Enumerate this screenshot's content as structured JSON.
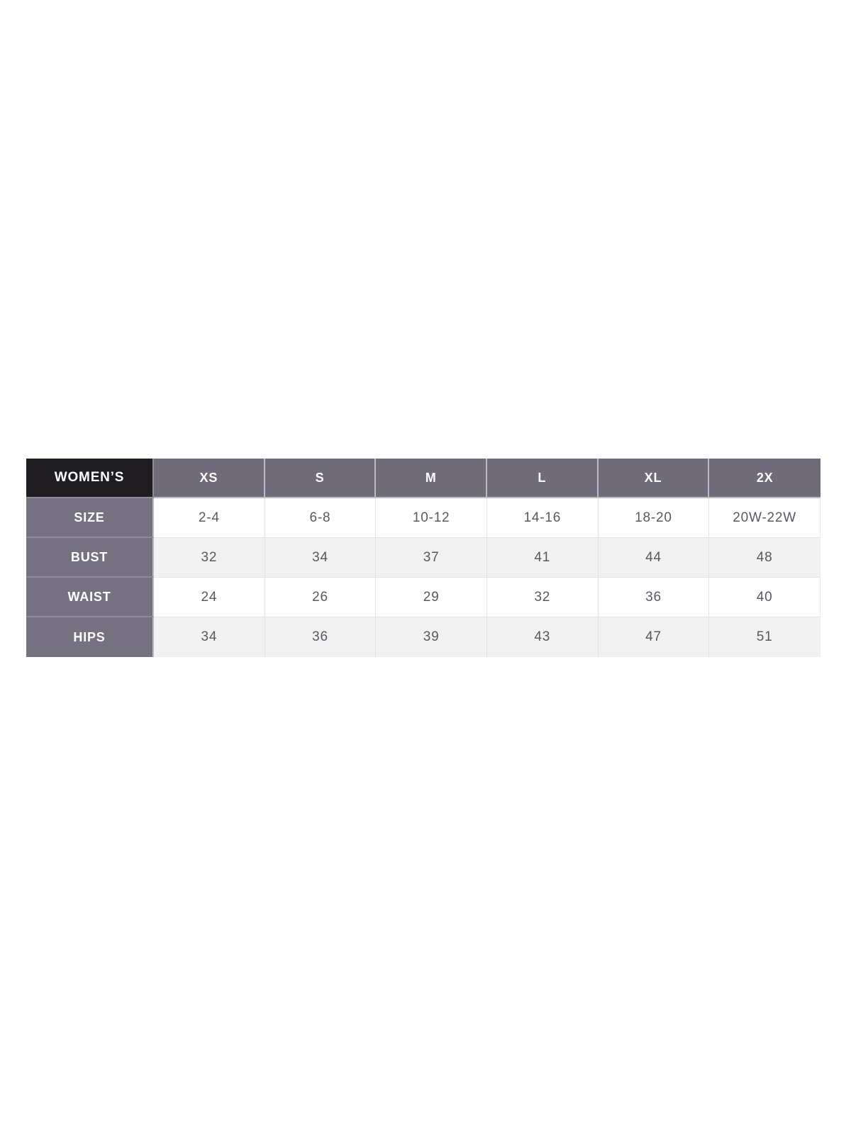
{
  "chart_data": {
    "type": "table",
    "title": "WOMEN’S",
    "corner_label": "WOMEN’S",
    "columns": [
      "XS",
      "S",
      "M",
      "L",
      "XL",
      "2X"
    ],
    "rows": [
      {
        "label": "SIZE",
        "values": [
          "2-4",
          "6-8",
          "10-12",
          "14-16",
          "18-20",
          "20W-22W"
        ]
      },
      {
        "label": "BUST",
        "values": [
          "32",
          "34",
          "37",
          "41",
          "44",
          "48"
        ]
      },
      {
        "label": "WAIST",
        "values": [
          "24",
          "26",
          "29",
          "32",
          "36",
          "40"
        ]
      },
      {
        "label": "HIPS",
        "values": [
          "34",
          "36",
          "39",
          "43",
          "47",
          "51"
        ]
      }
    ]
  },
  "theme": {
    "page_background": "#ffffff",
    "corner_cell_background": "#1f1d21",
    "column_header_background": "#6f6b79",
    "row_label_background": "#767181",
    "alternate_row_background": "#f1f1f2",
    "header_text_color": "#ffffff",
    "body_text_color": "#5a5761",
    "grid_line_color": "#e3e3e6"
  }
}
